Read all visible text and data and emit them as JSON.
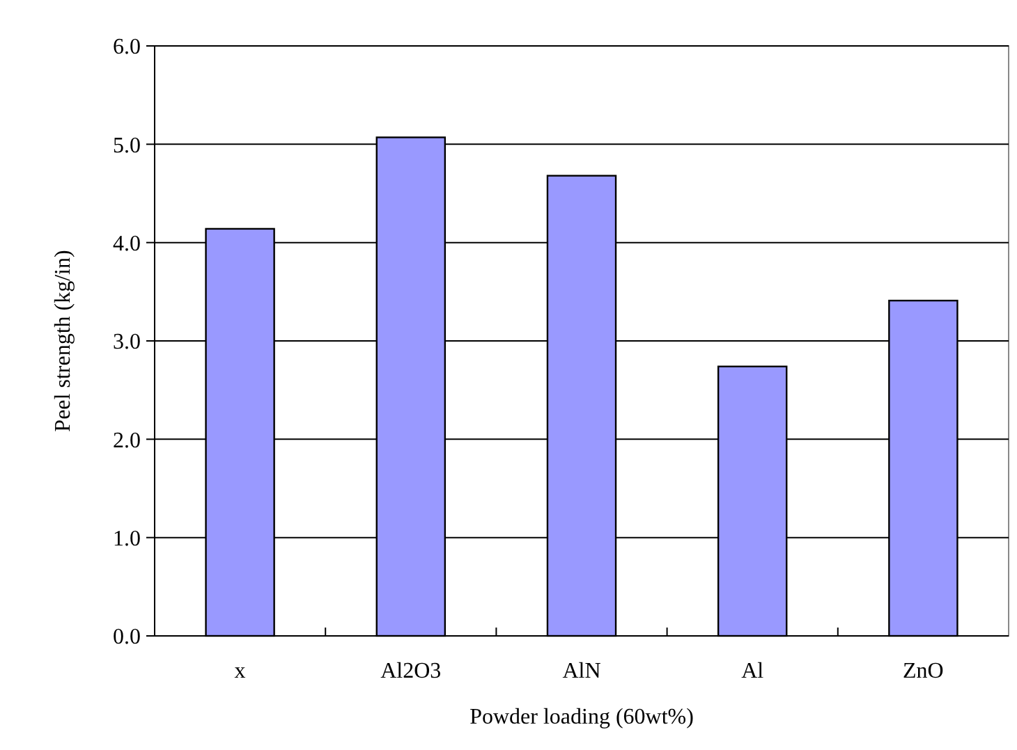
{
  "chart_data": {
    "type": "bar",
    "xlabel": "Powder loading (60wt%)",
    "ylabel": "Peel strength (kg/in)",
    "categories": [
      "x",
      "Al2O3",
      "AlN",
      "Al",
      "ZnO"
    ],
    "values": [
      4.14,
      5.07,
      4.68,
      2.74,
      3.41
    ],
    "color": "#9999ff",
    "ylim": [
      0,
      6
    ],
    "yticks": [
      {
        "value": 0,
        "label": "0.0"
      },
      {
        "value": 1,
        "label": "1.0"
      },
      {
        "value": 2,
        "label": "2.0"
      },
      {
        "value": 3,
        "label": "3.0"
      },
      {
        "value": 4,
        "label": "4.0"
      },
      {
        "value": 5,
        "label": "5.0"
      },
      {
        "value": 6,
        "label": "6.0"
      }
    ],
    "grid": "y"
  }
}
